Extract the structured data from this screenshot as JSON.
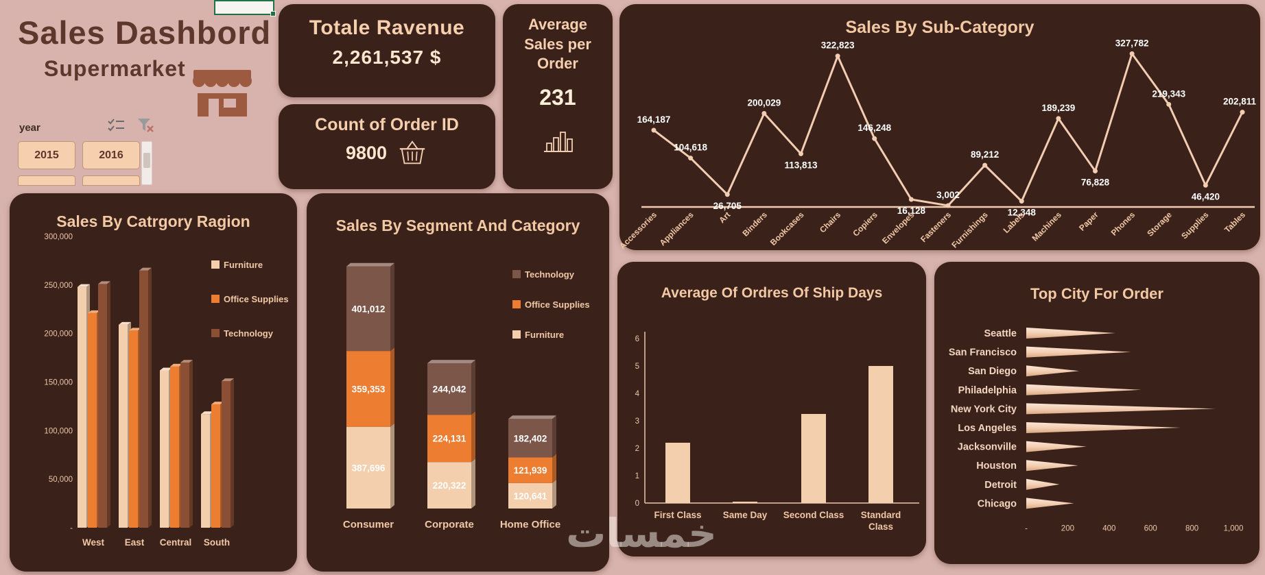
{
  "palette": {
    "background": "#d8b2ac",
    "card": "#3a211a",
    "peach": "#f2cdb2",
    "orange": "#ed7d31",
    "brown": "#8a4f35",
    "text_light": "#f0c8a6",
    "title_dark": "#5e372c"
  },
  "header": {
    "title": "Sales Dashbord",
    "subtitle": "Supermarket"
  },
  "slicer": {
    "label": "year",
    "buttons": [
      "2015",
      "2016"
    ]
  },
  "kpi": {
    "revenue": {
      "title": "Totale Ravenue",
      "value": "2,261,537 $"
    },
    "orders": {
      "title": "Count of Order ID",
      "value": "9800"
    },
    "avg_order": {
      "title": "Average Sales per Order",
      "value": "231"
    }
  },
  "watermark": "خمسات",
  "chart_data": [
    {
      "id": "subcategory",
      "type": "line",
      "title": "Sales By Sub-Category",
      "categories": [
        "Accessories",
        "Appliances",
        "Art",
        "Binders",
        "Bookcases",
        "Chairs",
        "Copiers",
        "Envelopes",
        "Fasteners",
        "Furnishings",
        "Labels",
        "Machines",
        "Paper",
        "Phones",
        "Storage",
        "Supplies",
        "Tables"
      ],
      "values": [
        164187,
        104618,
        26705,
        200029,
        113813,
        322823,
        146248,
        16128,
        3002,
        89212,
        12348,
        189239,
        76828,
        327782,
        219343,
        46420,
        202811
      ],
      "labels": [
        "164,187",
        "104,618",
        "26,705",
        "200,029",
        "113,813",
        "322,823",
        "146,248",
        "16,128",
        "3,002",
        "89,212",
        "12,348",
        "189,239",
        "76,828",
        "327,782",
        "219,343",
        "46,420",
        "202,811"
      ],
      "label_pos": [
        "above",
        "above",
        "below",
        "above",
        "below",
        "above",
        "above",
        "below",
        "above",
        "above",
        "below",
        "above",
        "below",
        "above",
        "above",
        "below",
        "above"
      ],
      "line_color": "#f2cdb2",
      "ylim": [
        0,
        340000
      ],
      "grid": false,
      "legend": "none"
    },
    {
      "id": "region",
      "type": "bar",
      "title": "Sales By Catrgory Ragion",
      "categories": [
        "West",
        "East",
        "Central",
        "South"
      ],
      "series": [
        {
          "name": "Furniture",
          "color": "#f4cfae",
          "values": [
            248000,
            209000,
            162000,
            117000
          ]
        },
        {
          "name": "Office Supplies",
          "color": "#ed7d31",
          "values": [
            221000,
            203000,
            166000,
            127000
          ]
        },
        {
          "name": "Technology",
          "color": "#8a4f35",
          "values": [
            251000,
            265000,
            170000,
            151000
          ]
        }
      ],
      "ylim": [
        0,
        300000
      ],
      "yticks": [
        "300,000",
        "250,000",
        "200,000",
        "150,000",
        "100,000",
        "50,000",
        "-"
      ],
      "legend_position": "right"
    },
    {
      "id": "segment",
      "type": "bar",
      "subtype": "stacked",
      "title": "Sales By Segment And Category",
      "categories": [
        "Consumer",
        "Corporate",
        "Home Office"
      ],
      "series": [
        {
          "name": "Furniture",
          "color": "#f4cfae",
          "values": [
            387696,
            220322,
            120641
          ],
          "labels": [
            "387,696",
            "220,322",
            "120,641"
          ]
        },
        {
          "name": "Office Supplies",
          "color": "#ed7d31",
          "values": [
            359353,
            224131,
            121939
          ],
          "labels": [
            "359,353",
            "224,131",
            "121,939"
          ]
        },
        {
          "name": "Technology",
          "color": "#7d564a",
          "values": [
            401012,
            244042,
            182402
          ],
          "labels": [
            "401,012",
            "244,042",
            "182,402"
          ]
        }
      ],
      "legend_position": "right"
    },
    {
      "id": "shipdays",
      "type": "bar",
      "title": "Average Of Ordres Of Ship Days",
      "categories": [
        "First Class",
        "Same Day",
        "Second Class",
        "Standard Class"
      ],
      "values": [
        2.2,
        0.05,
        3.25,
        5
      ],
      "ylim": [
        0,
        6
      ],
      "yticks": [
        "0",
        "1",
        "2",
        "3",
        "4",
        "5",
        "6"
      ],
      "bar_color": "#f4cfae"
    },
    {
      "id": "topcity",
      "type": "bar",
      "subtype": "horizontal-funnel",
      "title": "Top City For Order",
      "categories": [
        "Seattle",
        "San Francisco",
        "San Diego",
        "Philadelphia",
        "New York City",
        "Los Angeles",
        "Jacksonville",
        "Houston",
        "Detroit",
        "Chicago"
      ],
      "values": [
        430,
        505,
        255,
        555,
        915,
        745,
        290,
        250,
        160,
        230
      ],
      "xlim": [
        0,
        1000
      ],
      "xticks": [
        "-",
        "200",
        "400",
        "600",
        "800",
        "1,000"
      ]
    }
  ]
}
